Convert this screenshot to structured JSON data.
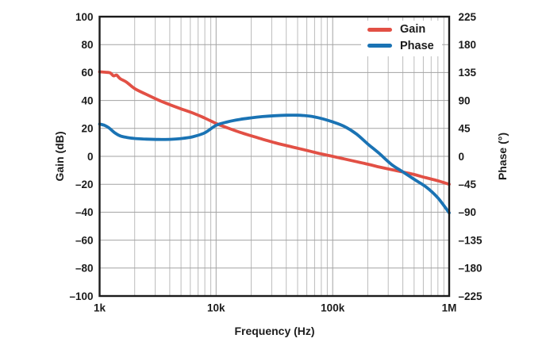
{
  "chart_data": {
    "type": "line",
    "title": "",
    "grid": true,
    "legend_position": "top-right-inside",
    "axes": {
      "x": {
        "label": "Frequency (Hz)",
        "scale": "log",
        "min": 1000,
        "max": 1000000,
        "ticks": [
          {
            "v": 1000,
            "t": "1k"
          },
          {
            "v": 10000,
            "t": "10k"
          },
          {
            "v": 100000,
            "t": "100k"
          },
          {
            "v": 1000000,
            "t": "1M"
          }
        ]
      },
      "y_left": {
        "label": "Gain (dB)",
        "min": -100,
        "max": 100,
        "tick_step": 20,
        "ticks": [
          {
            "v": 100,
            "t": "100"
          },
          {
            "v": 80,
            "t": "80"
          },
          {
            "v": 60,
            "t": "60"
          },
          {
            "v": 40,
            "t": "40"
          },
          {
            "v": 20,
            "t": "20"
          },
          {
            "v": 0,
            "t": "0"
          },
          {
            "v": -20,
            "t": "–20"
          },
          {
            "v": -40,
            "t": "–40"
          },
          {
            "v": -60,
            "t": "–60"
          },
          {
            "v": -80,
            "t": "–80"
          },
          {
            "v": -100,
            "t": "–100"
          }
        ]
      },
      "y_right": {
        "label": "Phase (°)",
        "min": -225,
        "max": 225,
        "tick_step": 45,
        "ticks": [
          {
            "v": 225,
            "t": "225"
          },
          {
            "v": 180,
            "t": "180"
          },
          {
            "v": 135,
            "t": "135"
          },
          {
            "v": 90,
            "t": "90"
          },
          {
            "v": 45,
            "t": "45"
          },
          {
            "v": 0,
            "t": "0"
          },
          {
            "v": -45,
            "t": "–45"
          },
          {
            "v": -90,
            "t": "–90"
          },
          {
            "v": -135,
            "t": "–135"
          },
          {
            "v": -180,
            "t": "–180"
          },
          {
            "v": -225,
            "t": "–225"
          }
        ]
      }
    },
    "series": [
      {
        "name": "Gain",
        "axis": "left",
        "unit": "dB",
        "color": "#e25045",
        "points": [
          [
            1000,
            60.5
          ],
          [
            1120,
            60.2
          ],
          [
            1230,
            59.8
          ],
          [
            1320,
            57.6
          ],
          [
            1400,
            58.2
          ],
          [
            1500,
            55.6
          ],
          [
            1700,
            53.2
          ],
          [
            2000,
            48.5
          ],
          [
            2500,
            44.5
          ],
          [
            3200,
            40.3
          ],
          [
            4000,
            37.0
          ],
          [
            5000,
            34.0
          ],
          [
            6300,
            31.0
          ],
          [
            8000,
            27.4
          ],
          [
            10000,
            23.5
          ],
          [
            12500,
            20.4
          ],
          [
            16000,
            17.2
          ],
          [
            20000,
            14.7
          ],
          [
            25000,
            12.3
          ],
          [
            32000,
            9.7
          ],
          [
            40000,
            7.7
          ],
          [
            50000,
            5.8
          ],
          [
            63000,
            3.8
          ],
          [
            80000,
            1.7
          ],
          [
            100000,
            0.0
          ],
          [
            125000,
            -1.8
          ],
          [
            160000,
            -3.8
          ],
          [
            200000,
            -5.6
          ],
          [
            250000,
            -7.6
          ],
          [
            320000,
            -9.5
          ],
          [
            400000,
            -11.2
          ],
          [
            500000,
            -13.0
          ],
          [
            630000,
            -15.3
          ],
          [
            800000,
            -17.5
          ],
          [
            1000000,
            -20.0
          ]
        ]
      },
      {
        "name": "Phase",
        "axis": "right",
        "unit": "°",
        "color": "#1a73b4",
        "points": [
          [
            1000,
            52
          ],
          [
            1100,
            50
          ],
          [
            1200,
            46
          ],
          [
            1350,
            38
          ],
          [
            1500,
            33
          ],
          [
            1700,
            30.5
          ],
          [
            2000,
            28.8
          ],
          [
            2500,
            27.8
          ],
          [
            3200,
            27.2
          ],
          [
            4000,
            27.4
          ],
          [
            5000,
            28.6
          ],
          [
            6300,
            31.5
          ],
          [
            8000,
            38
          ],
          [
            10000,
            50
          ],
          [
            12500,
            55.5
          ],
          [
            16000,
            59.5
          ],
          [
            20000,
            62
          ],
          [
            25000,
            64
          ],
          [
            32000,
            65.5
          ],
          [
            40000,
            66.2
          ],
          [
            50000,
            66.2
          ],
          [
            63000,
            64.8
          ],
          [
            80000,
            61
          ],
          [
            100000,
            55.5
          ],
          [
            125000,
            48.5
          ],
          [
            160000,
            36
          ],
          [
            200000,
            20
          ],
          [
            250000,
            5
          ],
          [
            320000,
            -13
          ],
          [
            400000,
            -25
          ],
          [
            500000,
            -37
          ],
          [
            630000,
            -49
          ],
          [
            800000,
            -67
          ],
          [
            1000000,
            -91
          ]
        ]
      }
    ]
  },
  "colors": {
    "background": "#ffffff",
    "grid_minor": "#bcbcbc",
    "grid_major": "#a3a3a3",
    "frame": "#1b1b1b",
    "text": "#1c1c1c"
  }
}
